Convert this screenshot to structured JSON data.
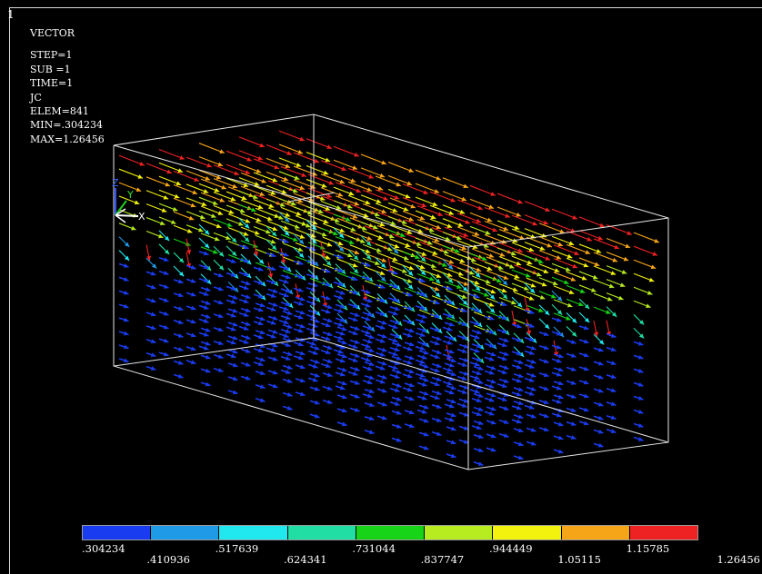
{
  "window": {
    "number": "1"
  },
  "info": {
    "title": "VECTOR",
    "lines": [
      "STEP=1",
      "SUB =1",
      "TIME=1",
      "JC",
      "ELEM=841",
      "MIN=.304234",
      "MAX=1.26456"
    ]
  },
  "triad": {
    "z": "Z",
    "y": "Y",
    "x": "X"
  },
  "legend": {
    "colors": [
      "#1a3cf0",
      "#1e9ae6",
      "#20e8ee",
      "#20dea4",
      "#18d418",
      "#b6ec20",
      "#f2f20e",
      "#f6a418",
      "#ee2222"
    ],
    "values": [
      ".304234",
      ".410936",
      ".517639",
      ".624341",
      ".731044",
      ".837747",
      ".944449",
      "1.05115",
      "1.15785",
      "1.26456"
    ]
  }
}
